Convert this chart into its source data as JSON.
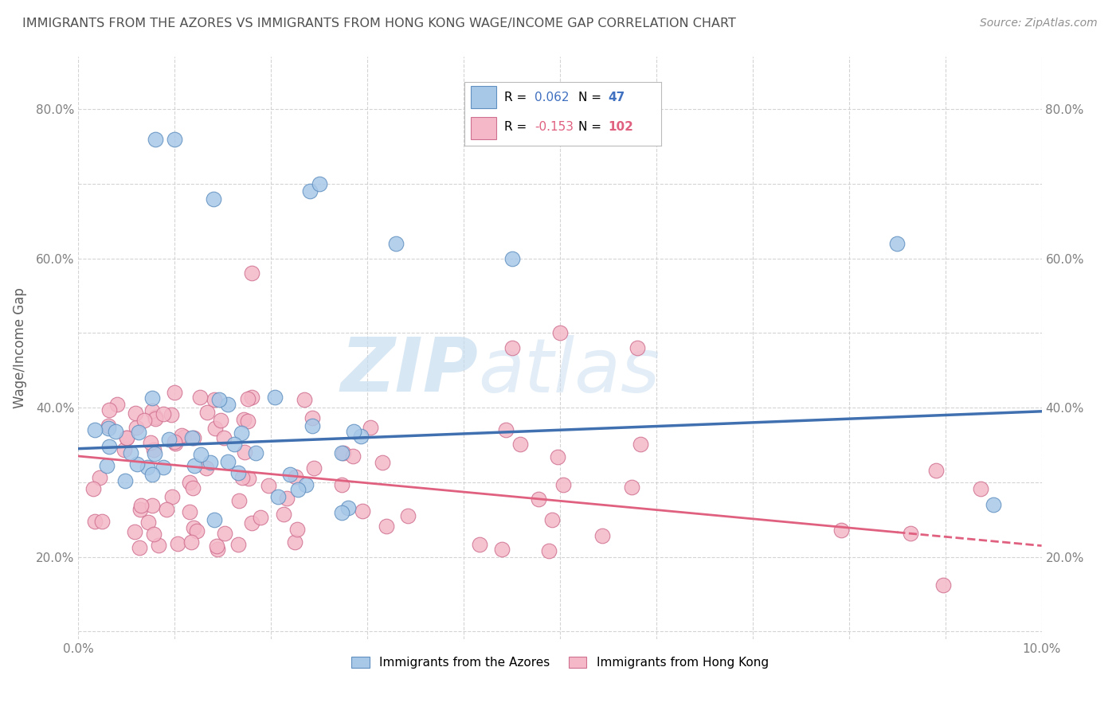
{
  "title": "IMMIGRANTS FROM THE AZORES VS IMMIGRANTS FROM HONG KONG WAGE/INCOME GAP CORRELATION CHART",
  "source": "Source: ZipAtlas.com",
  "ylabel": "Wage/Income Gap",
  "watermark_zip": "ZIP",
  "watermark_atlas": "atlas",
  "xlim": [
    0.0,
    0.1
  ],
  "ylim": [
    0.09,
    0.87
  ],
  "xticks": [
    0.0,
    0.01,
    0.02,
    0.03,
    0.04,
    0.05,
    0.06,
    0.07,
    0.08,
    0.09,
    0.1
  ],
  "xtick_labels_show": {
    "0.0": "0.0%",
    "0.10": "10.0%"
  },
  "yticks": [
    0.1,
    0.2,
    0.3,
    0.4,
    0.5,
    0.6,
    0.7,
    0.8
  ],
  "ytick_labels": [
    "",
    "20.0%",
    "",
    "40.0%",
    "",
    "60.0%",
    "",
    "80.0%"
  ],
  "legend_azores_label": "Immigrants from the Azores",
  "legend_hk_label": "Immigrants from Hong Kong",
  "R_azores": "0.062",
  "N_azores": "47",
  "R_hk": "-0.153",
  "N_hk": "102",
  "azores_color": "#a8c8e8",
  "hk_color": "#f4b8c8",
  "azores_edge_color": "#6090c0",
  "hk_edge_color": "#d07090",
  "azores_line_color": "#4070b0",
  "hk_line_color": "#e06080",
  "legend_color_blue": "#4070c0",
  "legend_color_pink": "#e06080",
  "background_color": "#ffffff",
  "grid_color": "#d0d0d0",
  "title_color": "#505050",
  "source_color": "#909090",
  "ylabel_color": "#606060",
  "tick_color": "#808080",
  "az_line_y0": 0.345,
  "az_line_y1": 0.395,
  "hk_line_y0": 0.335,
  "hk_line_y1": 0.215
}
